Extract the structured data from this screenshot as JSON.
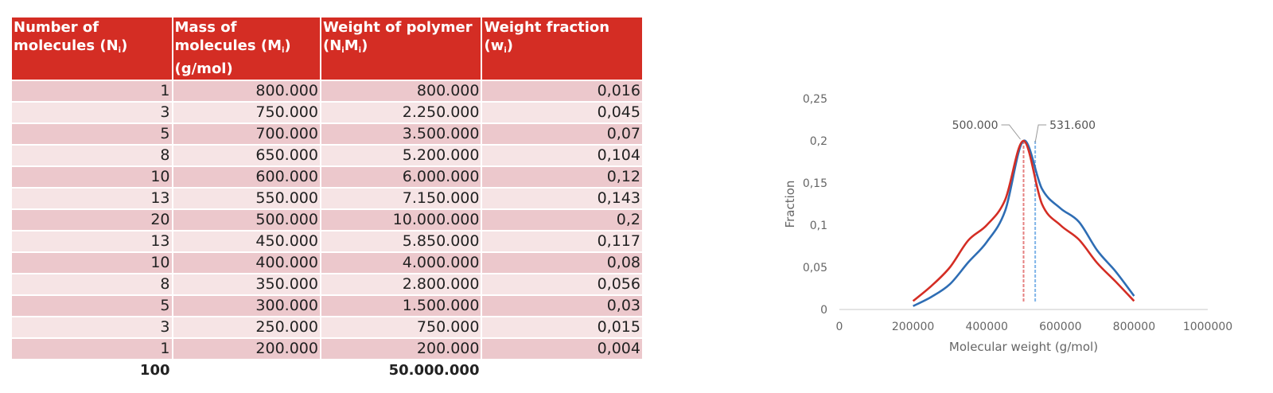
{
  "table": {
    "headers": [
      {
        "main": "Number of molecules (N",
        "sub": "i",
        "tail": ")"
      },
      {
        "main": "Mass of molecules (M",
        "sub": "i",
        "tail": ") (g/mol)"
      },
      {
        "main": "Weight of polymer (N",
        "sub": "i",
        "mid": "M",
        "sub2": "i",
        "tail": ")"
      },
      {
        "main": "Weight fraction (w",
        "sub": "i",
        "tail": ")"
      }
    ],
    "rows": [
      [
        "1",
        "800.000",
        "800.000",
        "0,016"
      ],
      [
        "3",
        "750.000",
        "2.250.000",
        "0,045"
      ],
      [
        "5",
        "700.000",
        "3.500.000",
        "0,07"
      ],
      [
        "8",
        "650.000",
        "5.200.000",
        "0,104"
      ],
      [
        "10",
        "600.000",
        "6.000.000",
        "0,12"
      ],
      [
        "13",
        "550.000",
        "7.150.000",
        "0,143"
      ],
      [
        "20",
        "500.000",
        "10.000.000",
        "0,2"
      ],
      [
        "13",
        "450.000",
        "5.850.000",
        "0,117"
      ],
      [
        "10",
        "400.000",
        "4.000.000",
        "0,08"
      ],
      [
        "8",
        "350.000",
        "2.800.000",
        "0,056"
      ],
      [
        "5",
        "300.000",
        "1.500.000",
        "0,03"
      ],
      [
        "3",
        "250.000",
        "750.000",
        "0,015"
      ],
      [
        "1",
        "200.000",
        "200.000",
        "0,004"
      ]
    ],
    "totals": [
      "100",
      "",
      "50.000.000",
      ""
    ]
  },
  "chart_data": {
    "type": "line",
    "title": "",
    "xlabel": "Molecular weight (g/mol)",
    "ylabel": "Fraction",
    "xlim": [
      0,
      1000000
    ],
    "ylim": [
      0,
      0.25
    ],
    "x_ticks": [
      0,
      200000,
      400000,
      600000,
      800000,
      1000000
    ],
    "x_tick_labels": [
      "0",
      "200000",
      "400000",
      "600000",
      "800000",
      "1000000"
    ],
    "y_ticks": [
      0,
      0.05,
      0.1,
      0.15,
      0.2,
      0.25
    ],
    "y_tick_labels": [
      "0",
      "0,05",
      "0,1",
      "0,15",
      "0,2",
      "0,25"
    ],
    "grid": false,
    "series": [
      {
        "color": "#2e6db4",
        "x": [
          200000,
          250000,
          300000,
          350000,
          400000,
          450000,
          500000,
          550000,
          600000,
          650000,
          700000,
          750000,
          800000
        ],
        "y": [
          0.004,
          0.015,
          0.03,
          0.056,
          0.08,
          0.117,
          0.2,
          0.143,
          0.12,
          0.104,
          0.07,
          0.045,
          0.016
        ]
      },
      {
        "color": "#d42d24",
        "x": [
          200000,
          250000,
          300000,
          350000,
          400000,
          450000,
          500000,
          550000,
          600000,
          650000,
          700000,
          750000,
          800000
        ],
        "y": [
          0.01,
          0.028,
          0.05,
          0.082,
          0.1,
          0.13,
          0.2,
          0.125,
          0.1,
          0.083,
          0.055,
          0.033,
          0.01
        ]
      }
    ],
    "markers": [
      {
        "x": 500000,
        "label": "500.000",
        "color": "#e58080"
      },
      {
        "x": 531600,
        "label": "531.600",
        "color": "#80b4e8"
      }
    ]
  }
}
